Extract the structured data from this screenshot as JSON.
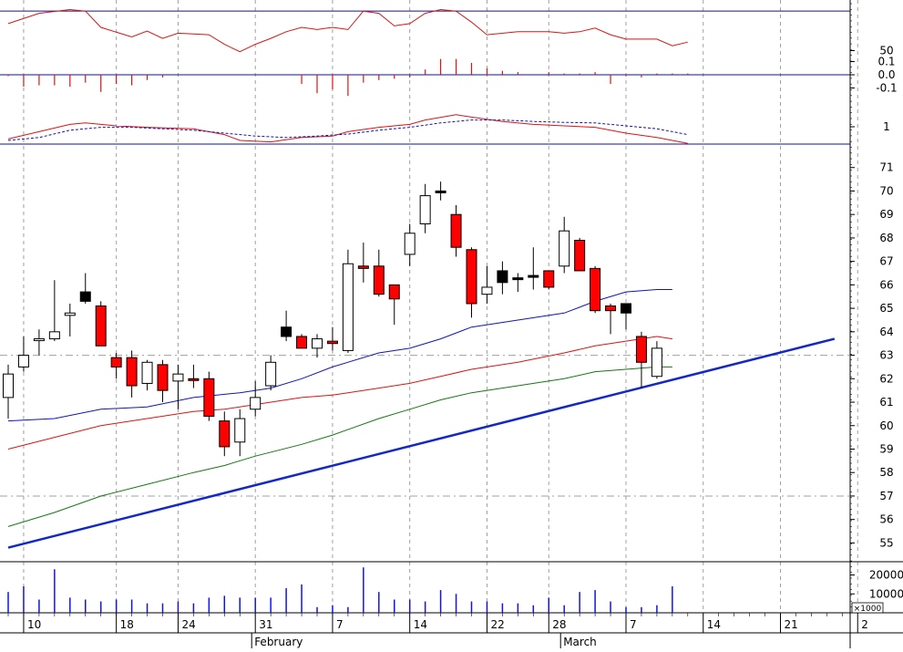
{
  "chart_data": {
    "type": "candlestick",
    "colors": {
      "grid": "#a0a0a0",
      "axis_blue": "#1010a0",
      "trend": "#1428c8",
      "up_body": "#ffffff",
      "down_body": "#ff0000",
      "black_body": "#000000",
      "ma_blue": "#1414b4",
      "ma_red": "#dc1414",
      "ma_green": "#147814",
      "volume": "#1414dc",
      "osc": "#dc1414"
    },
    "x_axis": {
      "tick_labels": [
        {
          "label": "10",
          "x": 1
        },
        {
          "label": "18",
          "x": 7
        },
        {
          "label": "24",
          "x": 11
        },
        {
          "label": "31",
          "x": 16
        },
        {
          "label": "7",
          "x": 21
        },
        {
          "label": "14",
          "x": 26
        },
        {
          "label": "22",
          "x": 31
        },
        {
          "label": "28",
          "x": 35
        },
        {
          "label": "7",
          "x": 40
        },
        {
          "label": "14",
          "x": 45
        },
        {
          "label": "21",
          "x": 50
        },
        {
          "label": "2",
          "x": 55
        }
      ],
      "month_labels": [
        {
          "label": "February",
          "x": 16
        },
        {
          "label": "March",
          "x": 36
        }
      ],
      "range": [
        0,
        56
      ]
    },
    "price_panel": {
      "ylim": [
        54.2,
        72.0
      ],
      "ticks": [
        55,
        56,
        57,
        58,
        59,
        60,
        61,
        62,
        63,
        64,
        65,
        66,
        67,
        68,
        69,
        70,
        71
      ],
      "reference_lines": [
        57,
        63
      ],
      "candles": [
        {
          "o": 61.2,
          "h": 62.6,
          "l": 60.3,
          "c": 62.2,
          "t": "up"
        },
        {
          "o": 62.5,
          "h": 63.8,
          "l": 62.3,
          "c": 63.0,
          "t": "up"
        },
        {
          "o": 63.7,
          "h": 64.1,
          "l": 63.0,
          "c": 63.7,
          "t": "up"
        },
        {
          "o": 63.7,
          "h": 66.2,
          "l": 63.6,
          "c": 64.0,
          "t": "up"
        },
        {
          "o": 64.7,
          "h": 65.2,
          "l": 63.8,
          "c": 64.8,
          "t": "up"
        },
        {
          "o": 65.7,
          "h": 66.5,
          "l": 65.2,
          "c": 65.3,
          "t": "black"
        },
        {
          "o": 65.1,
          "h": 65.3,
          "l": 63.4,
          "c": 63.4,
          "t": "down"
        },
        {
          "o": 62.9,
          "h": 63.1,
          "l": 62.0,
          "c": 62.5,
          "t": "down"
        },
        {
          "o": 62.9,
          "h": 63.2,
          "l": 61.2,
          "c": 61.7,
          "t": "down"
        },
        {
          "o": 61.8,
          "h": 62.8,
          "l": 61.5,
          "c": 62.7,
          "t": "up"
        },
        {
          "o": 62.6,
          "h": 62.8,
          "l": 61.0,
          "c": 61.5,
          "t": "down"
        },
        {
          "o": 61.9,
          "h": 62.6,
          "l": 60.7,
          "c": 62.2,
          "t": "up"
        },
        {
          "o": 62.0,
          "h": 62.6,
          "l": 61.6,
          "c": 62.0,
          "t": "down"
        },
        {
          "o": 62.0,
          "h": 62.3,
          "l": 60.2,
          "c": 60.4,
          "t": "down"
        },
        {
          "o": 60.2,
          "h": 60.6,
          "l": 58.7,
          "c": 59.1,
          "t": "down"
        },
        {
          "o": 59.3,
          "h": 60.7,
          "l": 58.7,
          "c": 60.3,
          "t": "up"
        },
        {
          "o": 60.7,
          "h": 61.9,
          "l": 60.4,
          "c": 61.2,
          "t": "up"
        },
        {
          "o": 61.7,
          "h": 63.0,
          "l": 61.5,
          "c": 62.7,
          "t": "up"
        },
        {
          "o": 64.2,
          "h": 64.9,
          "l": 63.6,
          "c": 63.8,
          "t": "black"
        },
        {
          "o": 63.8,
          "h": 63.9,
          "l": 63.3,
          "c": 63.3,
          "t": "down"
        },
        {
          "o": 63.3,
          "h": 63.9,
          "l": 62.9,
          "c": 63.7,
          "t": "up"
        },
        {
          "o": 63.6,
          "h": 64.2,
          "l": 63.2,
          "c": 63.5,
          "t": "down"
        },
        {
          "o": 63.2,
          "h": 67.5,
          "l": 63.1,
          "c": 66.9,
          "t": "up"
        },
        {
          "o": 66.8,
          "h": 67.8,
          "l": 66.1,
          "c": 66.7,
          "t": "down"
        },
        {
          "o": 66.8,
          "h": 67.5,
          "l": 65.5,
          "c": 65.6,
          "t": "down"
        },
        {
          "o": 66.0,
          "h": 66.0,
          "l": 64.3,
          "c": 65.4,
          "t": "down"
        },
        {
          "o": 67.3,
          "h": 68.6,
          "l": 66.8,
          "c": 68.2,
          "t": "up"
        },
        {
          "o": 68.6,
          "h": 70.3,
          "l": 68.2,
          "c": 69.8,
          "t": "up"
        },
        {
          "o": 70.0,
          "h": 70.4,
          "l": 69.6,
          "c": 70.0,
          "t": "black"
        },
        {
          "o": 69.0,
          "h": 69.4,
          "l": 67.2,
          "c": 67.6,
          "t": "down"
        },
        {
          "o": 67.5,
          "h": 67.6,
          "l": 64.6,
          "c": 65.2,
          "t": "down"
        },
        {
          "o": 65.6,
          "h": 66.8,
          "l": 65.2,
          "c": 65.9,
          "t": "up"
        },
        {
          "o": 66.6,
          "h": 67.0,
          "l": 65.6,
          "c": 66.1,
          "t": "black"
        },
        {
          "o": 66.3,
          "h": 66.5,
          "l": 65.7,
          "c": 66.3,
          "t": "black"
        },
        {
          "o": 66.4,
          "h": 67.6,
          "l": 65.8,
          "c": 66.4,
          "t": "black"
        },
        {
          "o": 66.6,
          "h": 66.6,
          "l": 65.8,
          "c": 65.9,
          "t": "down"
        },
        {
          "o": 66.8,
          "h": 68.9,
          "l": 66.5,
          "c": 68.3,
          "t": "up"
        },
        {
          "o": 67.9,
          "h": 68.0,
          "l": 66.6,
          "c": 66.6,
          "t": "down"
        },
        {
          "o": 66.7,
          "h": 66.8,
          "l": 64.8,
          "c": 64.9,
          "t": "down"
        },
        {
          "o": 65.1,
          "h": 65.2,
          "l": 63.9,
          "c": 64.9,
          "t": "down"
        },
        {
          "o": 65.2,
          "h": 65.2,
          "l": 64.1,
          "c": 64.8,
          "t": "black"
        },
        {
          "o": 63.8,
          "h": 64.0,
          "l": 61.6,
          "c": 62.7,
          "t": "down"
        },
        {
          "o": 62.1,
          "h": 63.6,
          "l": 62.0,
          "c": 63.3,
          "t": "up"
        }
      ],
      "ma_blue": [
        [
          0,
          60.2
        ],
        [
          3,
          60.3
        ],
        [
          6,
          60.7
        ],
        [
          9,
          60.8
        ],
        [
          12,
          61.2
        ],
        [
          15,
          61.4
        ],
        [
          17,
          61.6
        ],
        [
          19,
          62.0
        ],
        [
          21,
          62.5
        ],
        [
          24,
          63.1
        ],
        [
          26,
          63.3
        ],
        [
          28,
          63.7
        ],
        [
          30,
          64.2
        ],
        [
          33,
          64.5
        ],
        [
          36,
          64.8
        ],
        [
          38,
          65.3
        ],
        [
          40,
          65.7
        ],
        [
          42,
          65.8
        ],
        [
          43,
          65.8
        ]
      ],
      "ma_red": [
        [
          0,
          59.0
        ],
        [
          3,
          59.5
        ],
        [
          6,
          60.0
        ],
        [
          9,
          60.3
        ],
        [
          12,
          60.6
        ],
        [
          14,
          60.7
        ],
        [
          16,
          60.9
        ],
        [
          19,
          61.2
        ],
        [
          21,
          61.3
        ],
        [
          24,
          61.6
        ],
        [
          26,
          61.8
        ],
        [
          28,
          62.1
        ],
        [
          30,
          62.4
        ],
        [
          33,
          62.7
        ],
        [
          36,
          63.1
        ],
        [
          38,
          63.4
        ],
        [
          40,
          63.6
        ],
        [
          42,
          63.8
        ],
        [
          43,
          63.7
        ]
      ],
      "ma_green": [
        [
          0,
          55.7
        ],
        [
          3,
          56.3
        ],
        [
          6,
          57.0
        ],
        [
          9,
          57.5
        ],
        [
          12,
          58.0
        ],
        [
          14,
          58.3
        ],
        [
          16,
          58.7
        ],
        [
          19,
          59.2
        ],
        [
          21,
          59.6
        ],
        [
          24,
          60.3
        ],
        [
          26,
          60.7
        ],
        [
          28,
          61.1
        ],
        [
          30,
          61.4
        ],
        [
          33,
          61.7
        ],
        [
          36,
          62.0
        ],
        [
          38,
          62.3
        ],
        [
          40,
          62.4
        ],
        [
          42,
          62.5
        ],
        [
          43,
          62.5
        ]
      ],
      "trendline": [
        [
          0,
          54.8
        ],
        [
          53.5,
          63.7
        ]
      ]
    },
    "top_panel": {
      "tick_labels": [
        {
          "label": "50",
          "value": 50
        }
      ],
      "ylim": [
        0,
        100
      ],
      "boundary_value": 85,
      "series": [
        [
          0,
          68
        ],
        [
          2,
          82
        ],
        [
          4,
          87
        ],
        [
          5,
          85
        ],
        [
          6,
          63
        ],
        [
          8,
          50
        ],
        [
          9,
          58
        ],
        [
          10,
          48
        ],
        [
          11,
          55
        ],
        [
          13,
          53
        ],
        [
          14,
          40
        ],
        [
          15,
          30
        ],
        [
          16,
          40
        ],
        [
          17,
          48
        ],
        [
          18,
          57
        ],
        [
          19,
          63
        ],
        [
          20,
          60
        ],
        [
          21,
          63
        ],
        [
          22,
          60
        ],
        [
          23,
          85
        ],
        [
          24,
          82
        ],
        [
          25,
          65
        ],
        [
          26,
          68
        ],
        [
          27,
          82
        ],
        [
          28,
          87
        ],
        [
          29,
          85
        ],
        [
          30,
          70
        ],
        [
          31,
          53
        ],
        [
          33,
          57
        ],
        [
          35,
          57
        ],
        [
          36,
          55
        ],
        [
          37,
          57
        ],
        [
          38,
          62
        ],
        [
          39,
          53
        ],
        [
          40,
          47
        ],
        [
          42,
          47
        ],
        [
          43,
          38
        ],
        [
          44,
          43
        ]
      ]
    },
    "histogram_panel": {
      "tick_labels": [
        {
          "label": "0.1",
          "value": 0.1
        },
        {
          "label": "0.0",
          "value": 0.0
        },
        {
          "label": "-0.1",
          "value": -0.1
        }
      ],
      "ylim": [
        -0.18,
        0.18
      ],
      "bars": [
        [
          0,
          -0.01
        ],
        [
          1,
          -0.09
        ],
        [
          2,
          -0.08
        ],
        [
          3,
          -0.08
        ],
        [
          4,
          -0.09
        ],
        [
          5,
          -0.06
        ],
        [
          6,
          -0.13
        ],
        [
          7,
          -0.07
        ],
        [
          8,
          -0.08
        ],
        [
          9,
          -0.04
        ],
        [
          10,
          -0.02
        ],
        [
          19,
          -0.07
        ],
        [
          20,
          -0.14
        ],
        [
          21,
          -0.11
        ],
        [
          22,
          -0.16
        ],
        [
          23,
          -0.06
        ],
        [
          24,
          -0.04
        ],
        [
          25,
          -0.03
        ],
        [
          26,
          -0.02
        ],
        [
          27,
          0.04
        ],
        [
          28,
          0.12
        ],
        [
          29,
          0.12
        ],
        [
          30,
          0.09
        ],
        [
          31,
          0.05
        ],
        [
          32,
          0.03
        ],
        [
          33,
          0.02
        ],
        [
          35,
          0.02
        ],
        [
          36,
          0.01
        ],
        [
          37,
          0.01
        ],
        [
          38,
          0.02
        ],
        [
          39,
          -0.07
        ],
        [
          40,
          -0.01
        ],
        [
          41,
          -0.02
        ],
        [
          42,
          0.01
        ],
        [
          43,
          0.01
        ],
        [
          44,
          0.01
        ]
      ]
    },
    "oscillator_panel": {
      "tick_labels": [
        {
          "label": "1",
          "value": 1
        }
      ],
      "ylim": [
        0,
        2
      ],
      "line": [
        [
          0,
          0.55
        ],
        [
          2,
          0.8
        ],
        [
          4,
          1.05
        ],
        [
          5,
          1.1
        ],
        [
          7,
          1.0
        ],
        [
          9,
          0.95
        ],
        [
          12,
          0.9
        ],
        [
          14,
          0.7
        ],
        [
          15,
          0.5
        ],
        [
          17,
          0.45
        ],
        [
          19,
          0.6
        ],
        [
          21,
          0.65
        ],
        [
          22,
          0.8
        ],
        [
          24,
          0.95
        ],
        [
          26,
          1.05
        ],
        [
          27,
          1.2
        ],
        [
          29,
          1.38
        ],
        [
          30,
          1.3
        ],
        [
          32,
          1.15
        ],
        [
          34,
          1.05
        ],
        [
          36,
          1.0
        ],
        [
          38,
          0.95
        ],
        [
          40,
          0.75
        ],
        [
          42,
          0.6
        ],
        [
          44,
          0.4
        ]
      ],
      "signal": [
        [
          0,
          0.5
        ],
        [
          2,
          0.6
        ],
        [
          4,
          0.85
        ],
        [
          6,
          0.95
        ],
        [
          8,
          0.95
        ],
        [
          10,
          0.9
        ],
        [
          12,
          0.85
        ],
        [
          14,
          0.75
        ],
        [
          16,
          0.65
        ],
        [
          18,
          0.6
        ],
        [
          20,
          0.65
        ],
        [
          22,
          0.72
        ],
        [
          24,
          0.85
        ],
        [
          26,
          0.95
        ],
        [
          28,
          1.1
        ],
        [
          30,
          1.2
        ],
        [
          32,
          1.2
        ],
        [
          34,
          1.15
        ],
        [
          36,
          1.12
        ],
        [
          38,
          1.1
        ],
        [
          40,
          1.0
        ],
        [
          42,
          0.9
        ],
        [
          44,
          0.7
        ]
      ]
    },
    "volume_panel": {
      "tick_labels": [
        {
          "label": "20000",
          "value": 20000
        },
        {
          "label": "10000",
          "value": 10000
        }
      ],
      "unit_label": "×1000",
      "ylim": [
        0,
        27000
      ],
      "bars": [
        [
          0,
          11000
        ],
        [
          1,
          14000
        ],
        [
          2,
          7000
        ],
        [
          3,
          23000
        ],
        [
          4,
          8000
        ],
        [
          5,
          7000
        ],
        [
          6,
          6000
        ],
        [
          7,
          7000
        ],
        [
          8,
          7000
        ],
        [
          9,
          5000
        ],
        [
          10,
          5000
        ],
        [
          11,
          6000
        ],
        [
          12,
          5000
        ],
        [
          13,
          8000
        ],
        [
          14,
          9000
        ],
        [
          15,
          8000
        ],
        [
          16,
          8000
        ],
        [
          17,
          8000
        ],
        [
          18,
          13000
        ],
        [
          19,
          15000
        ],
        [
          20,
          3000
        ],
        [
          21,
          4000
        ],
        [
          22,
          3000
        ],
        [
          23,
          24000
        ],
        [
          24,
          11000
        ],
        [
          25,
          7000
        ],
        [
          26,
          7000
        ],
        [
          27,
          6000
        ],
        [
          28,
          12000
        ],
        [
          29,
          10000
        ],
        [
          30,
          6000
        ],
        [
          31,
          6000
        ],
        [
          32,
          5000
        ],
        [
          33,
          5000
        ],
        [
          34,
          4000
        ],
        [
          35,
          8000
        ],
        [
          36,
          4000
        ],
        [
          37,
          11000
        ],
        [
          38,
          12000
        ],
        [
          39,
          6000
        ],
        [
          40,
          3000
        ],
        [
          41,
          3000
        ],
        [
          42,
          4000
        ],
        [
          43,
          14000
        ]
      ]
    }
  }
}
